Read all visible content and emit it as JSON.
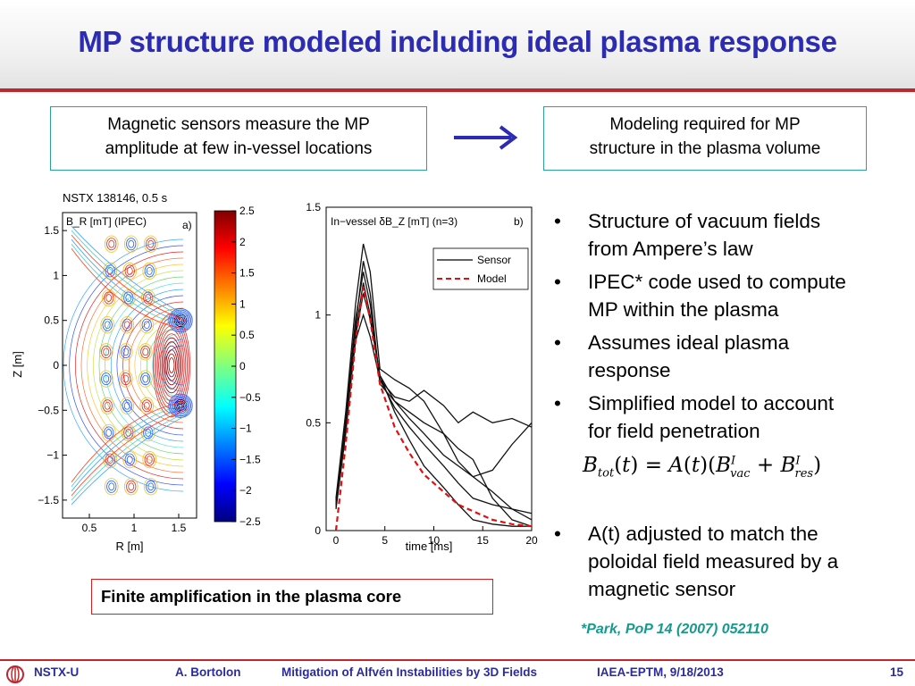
{
  "slide": {
    "title": "MP structure modeled including ideal plasma response",
    "box_left": {
      "line1": "Magnetic sensors measure the MP",
      "line2": "amplitude at few in-vessel locations"
    },
    "box_right": {
      "line1": "Modeling required for MP",
      "line2": "structure in the plasma volume"
    },
    "bullets": [
      {
        "line1": "Structure of vacuum fields",
        "line2": "from Ampere’s law"
      },
      {
        "line1": "IPEC* code used to compute",
        "line2": "MP within the plasma"
      },
      {
        "line1": "Assumes ideal plasma",
        "line2": "response"
      },
      {
        "line1": "Simplified model to account",
        "line2": "for field penetration"
      },
      {
        "line1": "A(t) adjusted to match the",
        "line2": "poloidal field measured by a",
        "line3": "magnetic sensor"
      }
    ],
    "bullet_marker": "•",
    "callout": "Finite amplification in the plasma core",
    "citation": "*Park, PoP 14 (2007) 052110"
  },
  "footer": {
    "org": "NSTX-U",
    "author": "A. Bortolon",
    "talk": "Mitigation of Alfvén Instabilities by 3D Fields",
    "venue": "IAEA-EPTM, 9/18/2013",
    "page": "15"
  },
  "colors": {
    "title": "#2b2bb3",
    "accent_red": "#c0262d",
    "box_border": "#2aa0a0",
    "citation": "#179a8e",
    "arrow": "#2b2bb3"
  },
  "chart_data": [
    {
      "type": "heatmap",
      "title": "NSTX 138146, 0.5 s",
      "panel_label": "B_R [mT] (IPEC)",
      "panel_tag": "a)",
      "xlabel": "R [m]",
      "ylabel": "Z [m]",
      "xlim": [
        0.2,
        1.7
      ],
      "ylim": [
        -1.7,
        1.7
      ],
      "xticks": [
        "0.5",
        "1",
        "1.5"
      ],
      "yticks": [
        "1.5",
        "1",
        "0.5",
        "0",
        "−0.5",
        "−1",
        "−1.5"
      ],
      "colorbar": {
        "min": -2.5,
        "max": 2.5,
        "ticks": [
          "2.5",
          "2",
          "1.5",
          "1",
          "0.5",
          "0",
          "−0.5",
          "−1",
          "−1.5",
          "−2",
          "−2.5"
        ]
      }
    },
    {
      "type": "line",
      "title": "In−vessel δB_Z [mT] (n=3)",
      "panel_tag": "b)",
      "xlabel": "time [ms]",
      "ylabel": "",
      "xlim": [
        -1,
        20
      ],
      "ylim": [
        0,
        1.5
      ],
      "xticks": [
        "0",
        "5",
        "10",
        "15",
        "20"
      ],
      "yticks": [
        "1.5",
        "1",
        "0.5",
        "0"
      ],
      "legend": [
        "Sensor",
        "Model"
      ],
      "legend_position": "top-right",
      "series": [
        {
          "name": "Sensor",
          "x": [
            0,
            1,
            2,
            2.8,
            3.5,
            4.5,
            6,
            7.5,
            9,
            11,
            12.5,
            14,
            16,
            18,
            20
          ],
          "values": [
            0.15,
            0.55,
            1.05,
            1.33,
            1.2,
            0.75,
            0.7,
            0.66,
            0.6,
            0.45,
            0.32,
            0.25,
            0.18,
            0.1,
            0.05
          ]
        },
        {
          "name": "Sensor",
          "x": [
            0,
            1,
            2,
            2.8,
            3.5,
            4.5,
            6,
            7.5,
            9,
            11,
            12.5,
            14,
            16,
            18,
            20
          ],
          "values": [
            0.12,
            0.5,
            0.95,
            1.25,
            1.1,
            0.68,
            0.6,
            0.52,
            0.45,
            0.35,
            0.3,
            0.25,
            0.28,
            0.4,
            0.5
          ]
        },
        {
          "name": "Sensor",
          "x": [
            0,
            1,
            2,
            2.8,
            3.5,
            4.5,
            6,
            7.5,
            9,
            11,
            12.5,
            14,
            16,
            18,
            20
          ],
          "values": [
            0.14,
            0.52,
            0.98,
            1.2,
            1.05,
            0.7,
            0.62,
            0.6,
            0.65,
            0.58,
            0.5,
            0.55,
            0.5,
            0.52,
            0.48
          ]
        },
        {
          "name": "Sensor",
          "x": [
            0,
            1,
            2,
            2.8,
            3.5,
            4.5,
            6,
            7.5,
            9,
            11,
            12.5,
            14,
            16,
            18,
            20
          ],
          "values": [
            0.1,
            0.45,
            0.9,
            1.1,
            0.98,
            0.72,
            0.55,
            0.42,
            0.3,
            0.2,
            0.12,
            0.05,
            0.03,
            0.02,
            0.02
          ]
        },
        {
          "name": "Sensor",
          "x": [
            0,
            1,
            2,
            2.8,
            3.5,
            4.5,
            6,
            7.5,
            9,
            11,
            12.5,
            14,
            16,
            18,
            20
          ],
          "values": [
            0.11,
            0.48,
            0.88,
            1.0,
            0.9,
            0.7,
            0.57,
            0.48,
            0.4,
            0.3,
            0.22,
            0.15,
            0.12,
            0.1,
            0.08
          ]
        },
        {
          "name": "Sensor",
          "x": [
            0,
            1,
            2,
            2.8,
            3.5,
            4.5,
            6,
            7.5,
            9,
            11,
            12.5,
            14,
            16,
            18,
            20
          ],
          "values": [
            0.13,
            0.5,
            0.92,
            1.15,
            1.0,
            0.72,
            0.6,
            0.55,
            0.5,
            0.45,
            0.38,
            0.33,
            0.15,
            0.05,
            0.02
          ]
        },
        {
          "name": "Model",
          "x": [
            0,
            1,
            2,
            2.8,
            3.5,
            4.5,
            6,
            7.5,
            9,
            11,
            12.5,
            14,
            16,
            18,
            20
          ],
          "values": [
            0.0,
            0.4,
            0.88,
            1.13,
            0.98,
            0.68,
            0.48,
            0.36,
            0.26,
            0.18,
            0.12,
            0.09,
            0.05,
            0.03,
            0.02
          ]
        }
      ]
    }
  ]
}
